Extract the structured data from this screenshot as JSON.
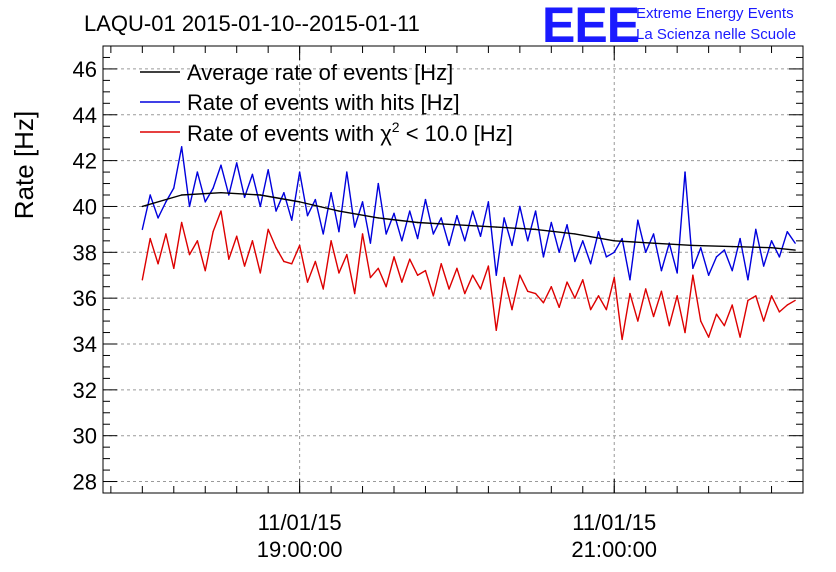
{
  "logo": {
    "mark": "EEE",
    "line1": "Extreme Energy Events",
    "line2": "La Scienza nelle Scuole",
    "color": "#1a1aff"
  },
  "chart_data": {
    "type": "line",
    "title": "LAQU-01 2015-01-10--2015-01-11",
    "ylabel": "Rate [Hz]",
    "xlabel": "",
    "ylim": [
      27.5,
      47
    ],
    "xlim_hours": [
      17.75,
      22.2
    ],
    "y_ticks": [
      28,
      30,
      32,
      34,
      36,
      38,
      40,
      42,
      44,
      46
    ],
    "x_ticks": [
      {
        "hour": 19.0,
        "date": "11/01/15",
        "time": "19:00:00"
      },
      {
        "hour": 21.0,
        "date": "11/01/15",
        "time": "21:00:00"
      }
    ],
    "grid": true,
    "legend": [
      {
        "series": "average",
        "text": "Average rate of events [Hz]",
        "color": "#000000"
      },
      {
        "series": "hits",
        "text": "Rate of events with hits [Hz]",
        "color": "#0000dd"
      },
      {
        "series": "chi2",
        "text_before": "Rate of events with ",
        "symbol": "χ",
        "sup": "2",
        "text_after": " < 10.0 [Hz]",
        "color": "#dd0000"
      }
    ],
    "series": [
      {
        "name": "average",
        "color": "#000000",
        "x": [
          18.0,
          18.25,
          18.5,
          18.75,
          19.0,
          19.25,
          19.5,
          19.75,
          20.0,
          20.25,
          20.5,
          20.75,
          21.0,
          21.25,
          21.5,
          21.75,
          22.0,
          22.15
        ],
        "values": [
          40.0,
          40.5,
          40.6,
          40.5,
          40.2,
          39.8,
          39.5,
          39.3,
          39.2,
          39.1,
          39.0,
          38.8,
          38.5,
          38.4,
          38.3,
          38.25,
          38.2,
          38.1
        ]
      },
      {
        "name": "hits",
        "color": "#0000dd",
        "x": [
          18.0,
          18.05,
          18.1,
          18.15,
          18.2,
          18.25,
          18.3,
          18.35,
          18.4,
          18.45,
          18.5,
          18.55,
          18.6,
          18.65,
          18.7,
          18.75,
          18.8,
          18.85,
          18.9,
          18.95,
          19.0,
          19.05,
          19.1,
          19.15,
          19.2,
          19.25,
          19.3,
          19.35,
          19.4,
          19.45,
          19.5,
          19.55,
          19.6,
          19.65,
          19.7,
          19.75,
          19.8,
          19.85,
          19.9,
          19.95,
          20.0,
          20.05,
          20.1,
          20.15,
          20.2,
          20.25,
          20.3,
          20.35,
          20.4,
          20.45,
          20.5,
          20.55,
          20.6,
          20.65,
          20.7,
          20.75,
          20.8,
          20.85,
          20.9,
          20.95,
          21.0,
          21.05,
          21.1,
          21.15,
          21.2,
          21.25,
          21.3,
          21.35,
          21.4,
          21.45,
          21.5,
          21.55,
          21.6,
          21.65,
          21.7,
          21.75,
          21.8,
          21.85,
          21.9,
          21.95,
          22.0,
          22.05,
          22.1,
          22.15
        ],
        "values": [
          39.0,
          40.5,
          39.5,
          40.2,
          40.8,
          42.6,
          40.0,
          41.5,
          40.2,
          40.8,
          41.8,
          40.5,
          41.9,
          40.4,
          41.4,
          40.0,
          41.6,
          39.8,
          40.6,
          39.4,
          41.5,
          39.6,
          40.3,
          38.8,
          40.6,
          38.9,
          41.5,
          39.1,
          40.2,
          38.4,
          41.0,
          38.8,
          39.7,
          38.5,
          39.8,
          38.6,
          40.3,
          38.8,
          39.5,
          38.3,
          39.6,
          38.5,
          39.8,
          38.7,
          40.2,
          37.0,
          39.5,
          38.3,
          40.0,
          38.5,
          39.8,
          37.8,
          39.3,
          38.0,
          39.2,
          37.6,
          38.5,
          37.5,
          38.9,
          37.8,
          38.0,
          38.6,
          36.8,
          39.4,
          38.0,
          38.8,
          37.2,
          38.4,
          37.1,
          41.5,
          37.3,
          38.2,
          37.0,
          37.8,
          38.1,
          37.2,
          38.6,
          36.8,
          39.0,
          37.4,
          38.5,
          37.8,
          38.9,
          38.4
        ]
      },
      {
        "name": "chi2",
        "color": "#dd0000",
        "x": [
          18.0,
          18.05,
          18.1,
          18.15,
          18.2,
          18.25,
          18.3,
          18.35,
          18.4,
          18.45,
          18.5,
          18.55,
          18.6,
          18.65,
          18.7,
          18.75,
          18.8,
          18.85,
          18.9,
          18.95,
          19.0,
          19.05,
          19.1,
          19.15,
          19.2,
          19.25,
          19.3,
          19.35,
          19.4,
          19.45,
          19.5,
          19.55,
          19.6,
          19.65,
          19.7,
          19.75,
          19.8,
          19.85,
          19.9,
          19.95,
          20.0,
          20.05,
          20.1,
          20.15,
          20.2,
          20.25,
          20.3,
          20.35,
          20.4,
          20.45,
          20.5,
          20.55,
          20.6,
          20.65,
          20.7,
          20.75,
          20.8,
          20.85,
          20.9,
          20.95,
          21.0,
          21.05,
          21.1,
          21.15,
          21.2,
          21.25,
          21.3,
          21.35,
          21.4,
          21.45,
          21.5,
          21.55,
          21.6,
          21.65,
          21.7,
          21.75,
          21.8,
          21.85,
          21.9,
          21.95,
          22.0,
          22.05,
          22.1,
          22.15
        ],
        "values": [
          36.8,
          38.6,
          37.5,
          38.8,
          37.3,
          39.3,
          37.9,
          38.5,
          37.2,
          38.9,
          39.8,
          37.7,
          38.7,
          37.4,
          38.5,
          37.1,
          39.0,
          38.2,
          37.6,
          37.5,
          38.3,
          36.7,
          37.6,
          36.4,
          38.5,
          37.1,
          37.9,
          36.2,
          38.8,
          36.9,
          37.3,
          36.5,
          37.8,
          36.7,
          37.7,
          37.0,
          37.2,
          36.1,
          37.5,
          36.4,
          37.3,
          36.2,
          37.0,
          36.4,
          37.4,
          34.6,
          36.9,
          35.5,
          37.0,
          36.3,
          36.2,
          35.8,
          36.5,
          35.6,
          36.7,
          36.0,
          36.8,
          35.5,
          36.1,
          35.5,
          36.9,
          34.2,
          36.2,
          35.0,
          36.4,
          35.2,
          36.3,
          34.8,
          36.1,
          34.5,
          37.0,
          35.0,
          34.3,
          35.3,
          34.8,
          35.7,
          34.3,
          35.9,
          36.1,
          35.0,
          36.1,
          35.4,
          35.7,
          35.9
        ]
      }
    ]
  }
}
